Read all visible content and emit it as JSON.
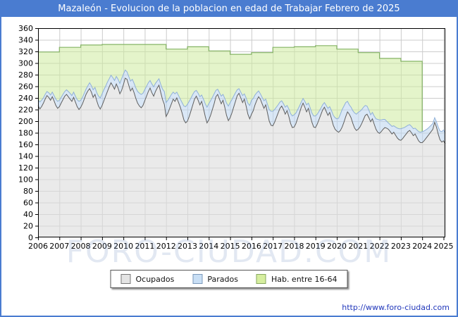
{
  "title_bar": {
    "title": "Mazaleón - Evolucion de la poblacion en edad de Trabajar Febrero de 2025"
  },
  "watermark": "FORO-CIUDAD.COM",
  "footer": {
    "url": "http://www.foro-ciudad.com"
  },
  "colors": {
    "frame_blue": "#4a7cd0",
    "grid": "#cccccc",
    "plot_border": "#000000",
    "ocupados_fill": "#dcdcdc",
    "ocupados_line": "#5f5f5f",
    "parados_fill": "#b9d3ee",
    "parados_line": "#8fb0d8",
    "hab_fill": "#cdeb9e",
    "hab_line": "#85b465"
  },
  "legend": {
    "items": [
      {
        "label": "Ocupados",
        "fill": "#e4e4e4",
        "border": "#777777"
      },
      {
        "label": "Parados",
        "fill": "#c9dff5",
        "border": "#7b99bb"
      },
      {
        "label": "Hab. entre 16-64",
        "fill": "#d6ee9f",
        "border": "#86a75f"
      }
    ]
  },
  "chart_data": {
    "type": "area",
    "title": "Mazaleón - Evolucion de la poblacion en edad de Trabajar Febrero de 2025",
    "xlabel": "",
    "ylabel": "",
    "ylim": [
      0,
      360
    ],
    "y_tick_step": 20,
    "x_tick_years": [
      2006,
      2007,
      2008,
      2009,
      2010,
      2011,
      2012,
      2013,
      2014,
      2015,
      2016,
      2017,
      2018,
      2019,
      2020,
      2021,
      2022,
      2023,
      2024,
      2025
    ],
    "x_start": {
      "year": 2006,
      "month": 1
    },
    "x_end": {
      "year": 2025,
      "month": 2
    },
    "grid": true,
    "legend_position": "bottom",
    "series": [
      {
        "name": "Ocupados",
        "kind": "monthly",
        "values": [
          227,
          221,
          225,
          231,
          238,
          244,
          241,
          236,
          242,
          235,
          227,
          222,
          225,
          231,
          237,
          243,
          246,
          242,
          238,
          234,
          241,
          233,
          225,
          220,
          224,
          230,
          238,
          246,
          252,
          256,
          250,
          241,
          246,
          235,
          226,
          221,
          227,
          235,
          243,
          251,
          259,
          266,
          261,
          255,
          264,
          257,
          247,
          253,
          263,
          274,
          272,
          262,
          252,
          257,
          249,
          239,
          231,
          226,
          223,
          227,
          235,
          243,
          251,
          257,
          249,
          243,
          251,
          257,
          262,
          249,
          237,
          229,
          208,
          214,
          222,
          230,
          238,
          234,
          240,
          232,
          224,
          214,
          202,
          197,
          200,
          208,
          218,
          228,
          238,
          243,
          236,
          228,
          234,
          222,
          208,
          197,
          202,
          210,
          220,
          230,
          242,
          246,
          238,
          230,
          236,
          224,
          210,
          201,
          206,
          214,
          224,
          234,
          244,
          248,
          240,
          232,
          238,
          226,
          212,
          204,
          212,
          218,
          228,
          236,
          242,
          238,
          230,
          222,
          228,
          214,
          200,
          193,
          192,
          198,
          206,
          214,
          222,
          226,
          220,
          212,
          218,
          208,
          196,
          189,
          190,
          196,
          205,
          214,
          224,
          231,
          224,
          216,
          222,
          210,
          198,
          190,
          189,
          195,
          203,
          211,
          219,
          224,
          217,
          210,
          215,
          204,
          193,
          186,
          183,
          181,
          184,
          190,
          198,
          208,
          216,
          212,
          206,
          196,
          188,
          184,
          186,
          190,
          196,
          203,
          210,
          212,
          206,
          199,
          204,
          195,
          186,
          181,
          179,
          182,
          186,
          189,
          188,
          186,
          182,
          178,
          181,
          176,
          171,
          168,
          167,
          170,
          174,
          178,
          182,
          184,
          180,
          175,
          178,
          172,
          166,
          163,
          163,
          166,
          170,
          174,
          178,
          182,
          186,
          198,
          190,
          178,
          168,
          164,
          166,
          161
        ]
      },
      {
        "name": "Parados",
        "kind": "monthly_stacked_on_previous",
        "values": [
          10,
          12,
          11,
          9,
          8,
          7,
          8,
          9,
          8,
          9,
          11,
          12,
          11,
          10,
          9,
          8,
          8,
          9,
          10,
          10,
          9,
          10,
          12,
          14,
          12,
          11,
          10,
          9,
          9,
          10,
          11,
          13,
          12,
          14,
          17,
          19,
          20,
          19,
          17,
          16,
          14,
          13,
          14,
          15,
          13,
          15,
          18,
          20,
          18,
          14,
          13,
          15,
          17,
          15,
          16,
          18,
          20,
          22,
          23,
          21,
          19,
          17,
          15,
          13,
          15,
          16,
          14,
          12,
          11,
          14,
          18,
          22,
          24,
          22,
          19,
          16,
          12,
          13,
          10,
          12,
          14,
          18,
          24,
          28,
          29,
          26,
          22,
          18,
          13,
          10,
          12,
          14,
          11,
          16,
          22,
          27,
          28,
          25,
          21,
          17,
          11,
          9,
          11,
          13,
          10,
          15,
          21,
          25,
          26,
          23,
          19,
          15,
          10,
          8,
          10,
          12,
          9,
          14,
          19,
          23,
          24,
          21,
          17,
          13,
          10,
          9,
          11,
          13,
          10,
          15,
          20,
          24,
          25,
          22,
          18,
          14,
          11,
          9,
          10,
          12,
          9,
          13,
          17,
          20,
          21,
          18,
          15,
          12,
          9,
          8,
          10,
          12,
          9,
          13,
          16,
          19,
          20,
          17,
          14,
          11,
          9,
          8,
          10,
          12,
          10,
          14,
          17,
          20,
          21,
          24,
          28,
          30,
          28,
          24,
          18,
          16,
          18,
          22,
          26,
          28,
          29,
          27,
          24,
          21,
          17,
          14,
          13,
          12,
          11,
          14,
          18,
          22,
          23,
          20,
          17,
          14,
          12,
          11,
          12,
          13,
          11,
          14,
          17,
          19,
          20,
          18,
          15,
          13,
          11,
          10,
          11,
          12,
          10,
          13,
          16,
          18,
          19,
          17,
          15,
          13,
          12,
          11,
          10,
          8,
          9,
          12,
          15,
          18,
          19,
          18
        ]
      },
      {
        "name": "Hab. entre 16-64",
        "kind": "annual_step",
        "data_ends_at_year": 2024,
        "years": [
          {
            "year": 2006,
            "value": 319
          },
          {
            "year": 2007,
            "value": 327
          },
          {
            "year": 2008,
            "value": 331
          },
          {
            "year": 2009,
            "value": 332
          },
          {
            "year": 2010,
            "value": 332
          },
          {
            "year": 2011,
            "value": 332
          },
          {
            "year": 2012,
            "value": 324
          },
          {
            "year": 2013,
            "value": 328
          },
          {
            "year": 2014,
            "value": 321
          },
          {
            "year": 2015,
            "value": 315
          },
          {
            "year": 2016,
            "value": 318
          },
          {
            "year": 2017,
            "value": 327
          },
          {
            "year": 2018,
            "value": 328
          },
          {
            "year": 2019,
            "value": 330
          },
          {
            "year": 2020,
            "value": 324
          },
          {
            "year": 2021,
            "value": 318
          },
          {
            "year": 2022,
            "value": 308
          },
          {
            "year": 2023,
            "value": 303
          }
        ]
      }
    ]
  }
}
